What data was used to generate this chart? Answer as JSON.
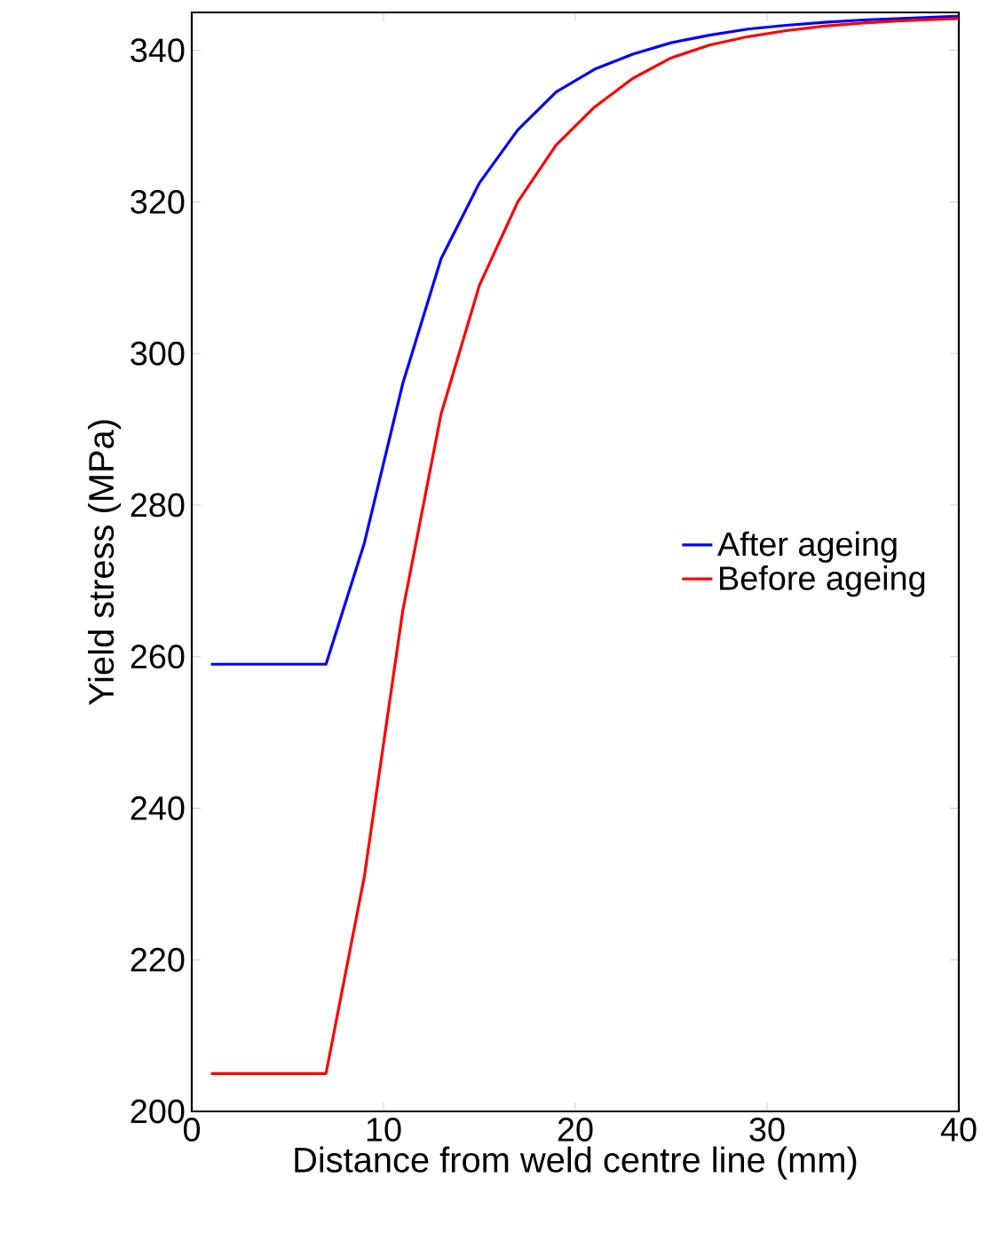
{
  "chart_data": {
    "type": "line",
    "xlabel": "Distance from weld centre line (mm)",
    "ylabel": "Yield stress (MPa)",
    "xlim": [
      0,
      40
    ],
    "ylim": [
      200,
      345
    ],
    "xticks": [
      0,
      10,
      20,
      30,
      40
    ],
    "yticks": [
      200,
      220,
      240,
      260,
      280,
      300,
      320,
      340
    ],
    "grid": false,
    "legend": "right",
    "line_style": "solid",
    "marker": "none",
    "x": [
      1,
      3,
      5,
      7,
      9,
      11,
      13,
      15,
      17,
      19,
      21,
      23,
      25,
      27,
      29,
      31,
      33,
      35,
      37,
      39,
      40
    ],
    "series": [
      {
        "name": "After ageing",
        "color": "#0000ff",
        "values": [
          259,
          259,
          259,
          259,
          275,
          296,
          312.5,
          322.5,
          329.5,
          334.5,
          337.5,
          339.5,
          341,
          342,
          342.8,
          343.3,
          343.7,
          344,
          344.2,
          344.4,
          344.5
        ]
      },
      {
        "name": "Before ageing",
        "color": "#ff0000",
        "values": [
          205,
          205,
          205,
          205,
          231,
          266,
          292,
          309,
          320,
          327.5,
          332.5,
          336.3,
          339,
          340.7,
          341.8,
          342.6,
          343.2,
          343.6,
          343.9,
          344.1,
          344.2
        ]
      }
    ]
  }
}
